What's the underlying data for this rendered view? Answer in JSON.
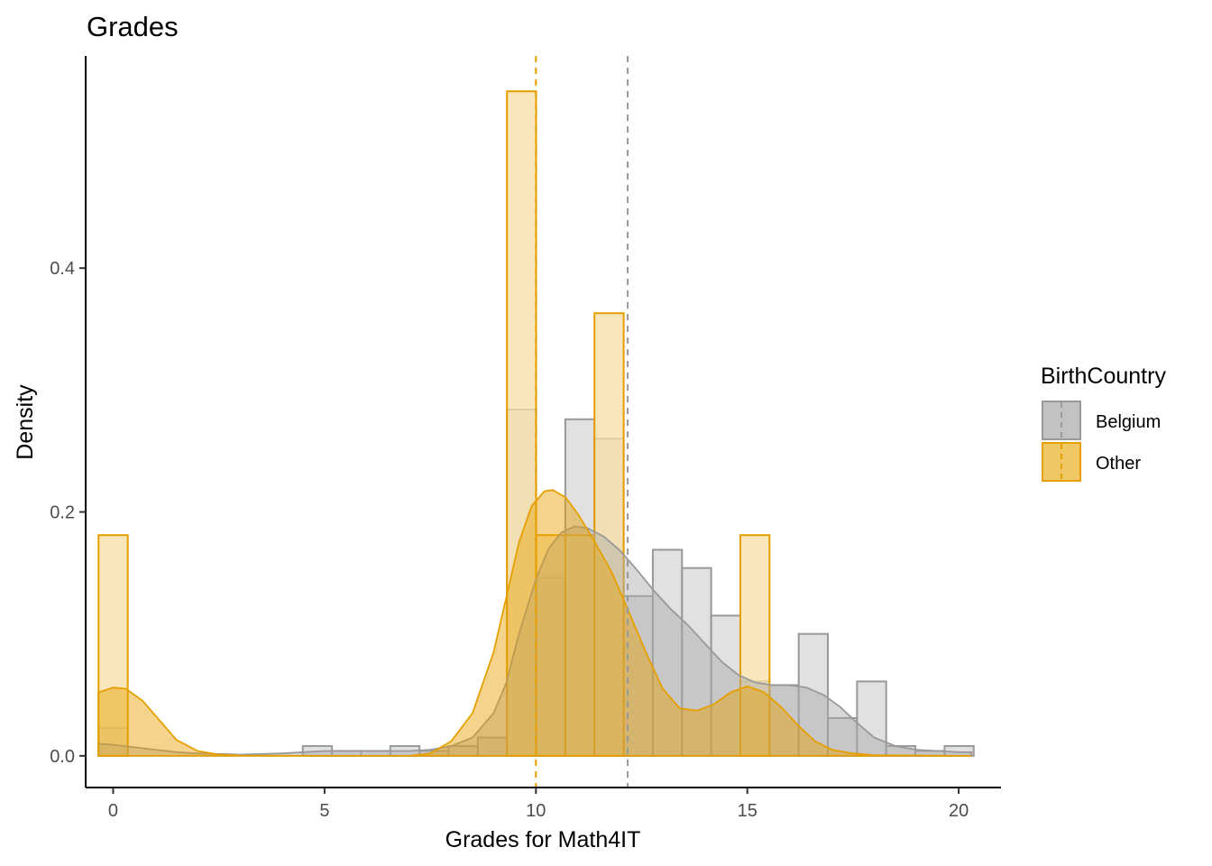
{
  "chart_data": {
    "type": "histogram+density",
    "title": "Grades",
    "xlabel": "Grades for Math4IT",
    "ylabel": "Density",
    "xlim": [
      -0.65,
      21.0
    ],
    "ylim": [
      -0.026,
      0.574
    ],
    "x_ticks": [
      0,
      5,
      10,
      15,
      20
    ],
    "x_tick_labels": [
      "0",
      "5",
      "10",
      "15",
      "20"
    ],
    "y_ticks": [
      0.0,
      0.2,
      0.4
    ],
    "y_tick_labels": [
      "0.0",
      "0.2",
      "0.4"
    ],
    "grid": false,
    "legend": {
      "title": "BirthCountry",
      "position": "right",
      "entries": [
        "Belgium",
        "Other"
      ]
    },
    "binwidth": 0.69,
    "series": [
      {
        "name": "Belgium",
        "fill": "#a9a9a9",
        "stroke": "#999999",
        "bar_fill": "#c9c9c9",
        "bar_opacity": 0.55,
        "mean": 12.17,
        "bins": [
          {
            "x": 0.0,
            "y": 0.023
          },
          {
            "x": 4.83,
            "y": 0.008
          },
          {
            "x": 5.52,
            "y": 0.004
          },
          {
            "x": 6.21,
            "y": 0.004
          },
          {
            "x": 6.9,
            "y": 0.008
          },
          {
            "x": 7.59,
            "y": 0.004
          },
          {
            "x": 8.28,
            "y": 0.008
          },
          {
            "x": 8.97,
            "y": 0.015
          },
          {
            "x": 9.66,
            "y": 0.284
          },
          {
            "x": 10.35,
            "y": 0.146
          },
          {
            "x": 11.04,
            "y": 0.276
          },
          {
            "x": 11.73,
            "y": 0.26
          },
          {
            "x": 12.42,
            "y": 0.131
          },
          {
            "x": 13.11,
            "y": 0.169
          },
          {
            "x": 13.8,
            "y": 0.154
          },
          {
            "x": 14.49,
            "y": 0.115
          },
          {
            "x": 15.18,
            "y": 0.061
          },
          {
            "x": 15.87,
            "y": 0.058
          },
          {
            "x": 16.56,
            "y": 0.1
          },
          {
            "x": 17.25,
            "y": 0.031
          },
          {
            "x": 17.94,
            "y": 0.061
          },
          {
            "x": 18.63,
            "y": 0.008
          },
          {
            "x": 19.32,
            "y": 0.004
          },
          {
            "x": 20.01,
            "y": 0.008
          }
        ],
        "density": [
          [
            -0.35,
            0.01
          ],
          [
            0,
            0.009
          ],
          [
            0.5,
            0.007
          ],
          [
            1,
            0.005
          ],
          [
            1.5,
            0.003
          ],
          [
            2,
            0.002
          ],
          [
            3,
            0.001
          ],
          [
            4,
            0.002
          ],
          [
            4.5,
            0.003
          ],
          [
            5,
            0.004
          ],
          [
            6,
            0.004
          ],
          [
            6.5,
            0.004
          ],
          [
            7,
            0.004
          ],
          [
            7.5,
            0.005
          ],
          [
            8,
            0.008
          ],
          [
            8.5,
            0.015
          ],
          [
            9,
            0.035
          ],
          [
            9.3,
            0.06
          ],
          [
            9.6,
            0.1
          ],
          [
            10,
            0.145
          ],
          [
            10.3,
            0.17
          ],
          [
            10.6,
            0.183
          ],
          [
            10.9,
            0.188
          ],
          [
            11.2,
            0.187
          ],
          [
            11.6,
            0.18
          ],
          [
            12,
            0.168
          ],
          [
            12.4,
            0.152
          ],
          [
            12.8,
            0.135
          ],
          [
            13.2,
            0.12
          ],
          [
            13.6,
            0.107
          ],
          [
            14,
            0.092
          ],
          [
            14.4,
            0.077
          ],
          [
            14.8,
            0.066
          ],
          [
            15.2,
            0.06
          ],
          [
            15.6,
            0.058
          ],
          [
            16,
            0.058
          ],
          [
            16.4,
            0.056
          ],
          [
            16.8,
            0.05
          ],
          [
            17.2,
            0.04
          ],
          [
            17.6,
            0.027
          ],
          [
            18,
            0.015
          ],
          [
            18.5,
            0.008
          ],
          [
            19,
            0.005
          ],
          [
            19.5,
            0.004
          ],
          [
            20,
            0.003
          ],
          [
            20.3,
            0.003
          ]
        ]
      },
      {
        "name": "Other",
        "fill": "#e69f00",
        "stroke": "#e69f00",
        "bar_fill": "#f7dfa4",
        "bar_opacity": 0.75,
        "mean": 10.0,
        "bins": [
          {
            "x": 0.0,
            "y": 0.181
          },
          {
            "x": 9.66,
            "y": 0.545
          },
          {
            "x": 10.35,
            "y": 0.181
          },
          {
            "x": 11.04,
            "y": 0.181
          },
          {
            "x": 11.73,
            "y": 0.363
          },
          {
            "x": 15.18,
            "y": 0.181
          }
        ],
        "density": [
          [
            -0.35,
            0.052
          ],
          [
            0,
            0.056
          ],
          [
            0.3,
            0.055
          ],
          [
            0.7,
            0.045
          ],
          [
            1,
            0.033
          ],
          [
            1.5,
            0.013
          ],
          [
            2,
            0.004
          ],
          [
            2.5,
            0.001
          ],
          [
            3,
            0.0003
          ],
          [
            5,
            0.0
          ],
          [
            7,
            0.0
          ],
          [
            7.5,
            0.002
          ],
          [
            8,
            0.012
          ],
          [
            8.5,
            0.035
          ],
          [
            9,
            0.085
          ],
          [
            9.3,
            0.13
          ],
          [
            9.6,
            0.175
          ],
          [
            9.9,
            0.205
          ],
          [
            10.2,
            0.217
          ],
          [
            10.4,
            0.218
          ],
          [
            10.7,
            0.212
          ],
          [
            11,
            0.198
          ],
          [
            11.4,
            0.175
          ],
          [
            11.8,
            0.15
          ],
          [
            12.2,
            0.118
          ],
          [
            12.6,
            0.085
          ],
          [
            13,
            0.055
          ],
          [
            13.4,
            0.039
          ],
          [
            13.8,
            0.037
          ],
          [
            14.2,
            0.042
          ],
          [
            14.6,
            0.052
          ],
          [
            15,
            0.057
          ],
          [
            15.4,
            0.052
          ],
          [
            15.8,
            0.04
          ],
          [
            16.2,
            0.025
          ],
          [
            16.6,
            0.012
          ],
          [
            17,
            0.005
          ],
          [
            17.5,
            0.002
          ],
          [
            18,
            0.0005
          ],
          [
            20,
            0.0
          ],
          [
            20.3,
            0.0
          ]
        ]
      }
    ]
  }
}
